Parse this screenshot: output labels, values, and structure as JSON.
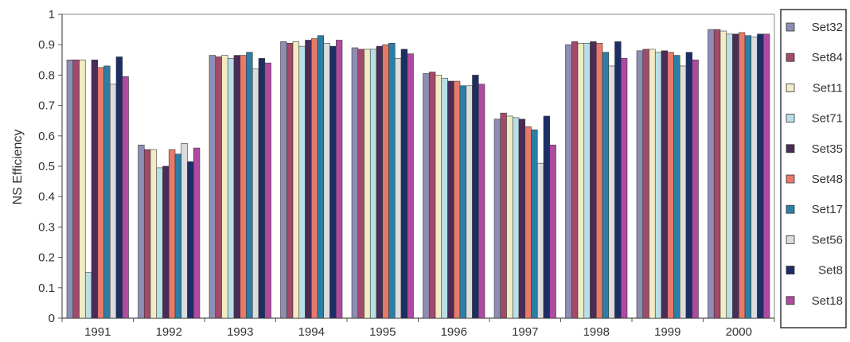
{
  "chart_data": {
    "type": "bar",
    "ylabel": "NS Efficiency",
    "ylim": [
      0,
      1
    ],
    "yticks": [
      "0",
      "0.1",
      "0.2",
      "0.3",
      "0.4",
      "0.5",
      "0.6",
      "0.7",
      "0.8",
      "0.9",
      "1"
    ],
    "categories": [
      "1991",
      "1992",
      "1993",
      "1994",
      "1995",
      "1996",
      "1997",
      "1998",
      "1999",
      "2000"
    ],
    "legend_position": "right",
    "grid": false,
    "series": [
      {
        "name": "Set32",
        "color": "#8e8eb4",
        "values": [
          0.85,
          0.57,
          0.865,
          0.91,
          0.89,
          0.805,
          0.655,
          0.9,
          0.88,
          0.95
        ]
      },
      {
        "name": "Set84",
        "color": "#a34a6a",
        "values": [
          0.85,
          0.555,
          0.86,
          0.905,
          0.885,
          0.81,
          0.675,
          0.91,
          0.885,
          0.95
        ]
      },
      {
        "name": "Set11",
        "color": "#f2ecc4",
        "values": [
          0.85,
          0.555,
          0.865,
          0.91,
          0.885,
          0.8,
          0.665,
          0.905,
          0.885,
          0.945
        ]
      },
      {
        "name": "Set71",
        "color": "#b9dfe6",
        "values": [
          0.15,
          0.495,
          0.855,
          0.895,
          0.885,
          0.79,
          0.66,
          0.905,
          0.875,
          0.935
        ]
      },
      {
        "name": "Set35",
        "color": "#4b2b58",
        "values": [
          0.85,
          0.5,
          0.865,
          0.915,
          0.895,
          0.78,
          0.655,
          0.91,
          0.88,
          0.935
        ]
      },
      {
        "name": "Set48",
        "color": "#e87a6a",
        "values": [
          0.825,
          0.555,
          0.865,
          0.92,
          0.9,
          0.78,
          0.63,
          0.905,
          0.875,
          0.94
        ]
      },
      {
        "name": "Set17",
        "color": "#2b7fa6",
        "values": [
          0.83,
          0.54,
          0.875,
          0.93,
          0.905,
          0.765,
          0.62,
          0.875,
          0.865,
          0.93
        ]
      },
      {
        "name": "Set56",
        "color": "#dcdcdc",
        "values": [
          0.77,
          0.575,
          0.82,
          0.905,
          0.855,
          0.765,
          0.51,
          0.83,
          0.83,
          0.925
        ]
      },
      {
        "name": "Set8",
        "color": "#1d2e66",
        "values": [
          0.86,
          0.515,
          0.855,
          0.895,
          0.885,
          0.8,
          0.665,
          0.91,
          0.875,
          0.935
        ]
      },
      {
        "name": "Set18",
        "color": "#b04aa0",
        "values": [
          0.795,
          0.56,
          0.84,
          0.915,
          0.87,
          0.77,
          0.57,
          0.855,
          0.85,
          0.935
        ]
      }
    ]
  }
}
